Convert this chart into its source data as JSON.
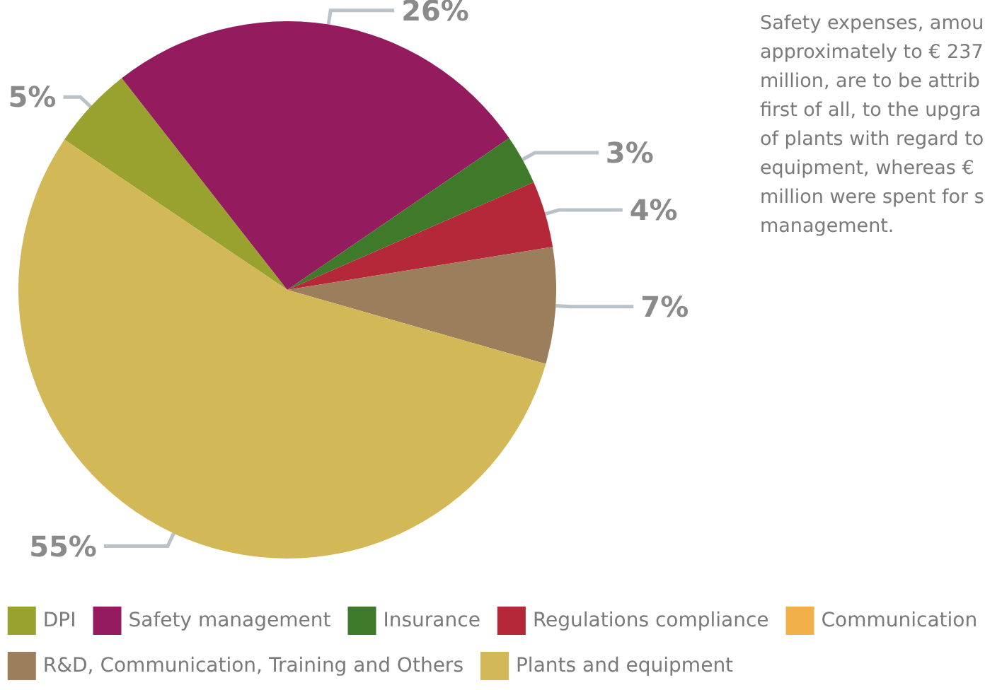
{
  "chart_data": {
    "type": "pie",
    "categories": [
      "DPI",
      "Safety management",
      "Insurance",
      "Regulations compliance",
      "Communication",
      "R&D, Communication, Training and Others",
      "Plants and equipment"
    ],
    "values": [
      5,
      26,
      3,
      4,
      0,
      7,
      55
    ],
    "value_labels": [
      "5%",
      "26%",
      "3%",
      "4%",
      null,
      "7%",
      "55%"
    ],
    "colors": [
      "#9aa22f",
      "#951b5f",
      "#3e7a2a",
      "#b5283a",
      "#f2b04a",
      "#9b7e5b",
      "#d3b857"
    ],
    "legend": "bottom",
    "annotations": [
      "Safety expenses, amou\napproximately to € 237\nmillion, are to be attrib\nfirst of all, to the upgra\nof plants with regard to\nequipment, whereas €\nmillion were spent for s\nmanagement."
    ]
  }
}
